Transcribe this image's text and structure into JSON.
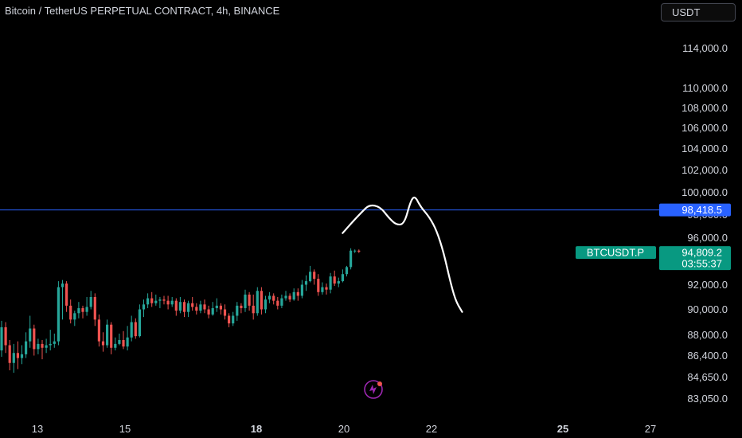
{
  "header": {
    "title": "Bitcoin / TetherUS PERPETUAL CONTRACT, 4h, BINANCE",
    "currency": "USDT"
  },
  "colors": {
    "background": "#000000",
    "axis_text": "#d1d4dc",
    "up": "#26a69a",
    "down": "#ef5350",
    "horizontal_line": "#2962ff",
    "line_label_bg": "#2962ff",
    "price_label_bg": "#089981",
    "drawing": "#ffffff",
    "logo": "#9c27b0"
  },
  "chart_data": {
    "type": "candlestick",
    "title": "Bitcoin / TetherUS PERPETUAL CONTRACT, 4h, BINANCE",
    "price_axis": {
      "ticks": [
        {
          "value": 114000,
          "label": "114,000.0"
        },
        {
          "value": 110000,
          "label": "110,000.0"
        },
        {
          "value": 108000,
          "label": "108,000.0"
        },
        {
          "value": 106000,
          "label": "106,000.0"
        },
        {
          "value": 104000,
          "label": "104,000.0"
        },
        {
          "value": 102000,
          "label": "102,000.0"
        },
        {
          "value": 100000,
          "label": "100,000.0"
        },
        {
          "value": 98000,
          "label": "98,000.0"
        },
        {
          "value": 96000,
          "label": "96,000.0"
        },
        {
          "value": 92000,
          "label": "92,000.0"
        },
        {
          "value": 90000,
          "label": "90,000.0"
        },
        {
          "value": 88000,
          "label": "88,000.0"
        },
        {
          "value": 86400,
          "label": "86,400.0"
        },
        {
          "value": 84650,
          "label": "84,650.0"
        },
        {
          "value": 83050,
          "label": "83,050.0"
        }
      ],
      "range": [
        82400,
        116500
      ]
    },
    "time_axis": {
      "ticks": [
        {
          "day": 13,
          "label": "13",
          "bold": false
        },
        {
          "day": 15,
          "label": "15",
          "bold": false
        },
        {
          "day": 18,
          "label": "18",
          "bold": true
        },
        {
          "day": 20,
          "label": "20",
          "bold": false
        },
        {
          "day": 22,
          "label": "22",
          "bold": false
        },
        {
          "day": 25,
          "label": "25",
          "bold": true
        },
        {
          "day": 27,
          "label": "27",
          "bold": false
        }
      ],
      "range_days": [
        12.25,
        27.45
      ]
    },
    "horizontal_line": {
      "value": 98418.5,
      "label": "98,418.5"
    },
    "last_price": {
      "symbol": "BTCUSDT.P",
      "value": "94,809.2",
      "countdown": "03:55:37",
      "numeric": 94809.2
    },
    "candles": [
      [
        86800,
        88600,
        89100,
        86300
      ],
      [
        88600,
        87200,
        89000,
        86600
      ],
      [
        87200,
        85800,
        87600,
        85200
      ],
      [
        85800,
        86600,
        87300,
        85000
      ],
      [
        86600,
        86200,
        87500,
        85300
      ],
      [
        86200,
        86500,
        87200,
        85700
      ],
      [
        86500,
        87500,
        88200,
        86200
      ],
      [
        87500,
        88500,
        89500,
        87000
      ],
      [
        88500,
        86900,
        88800,
        86400
      ],
      [
        86900,
        87300,
        87700,
        86500
      ],
      [
        87300,
        87000,
        87600,
        86100
      ],
      [
        87000,
        87200,
        87700,
        86600
      ],
      [
        87200,
        87300,
        88400,
        86800
      ],
      [
        87300,
        87500,
        88100,
        87000
      ],
      [
        87500,
        91800,
        92300,
        87200
      ],
      [
        91800,
        92100,
        92400,
        89200
      ],
      [
        92100,
        90300,
        92300,
        89800
      ],
      [
        90300,
        89200,
        90800,
        88900
      ],
      [
        89200,
        89700,
        89900,
        88700
      ],
      [
        89700,
        90100,
        90600,
        89300
      ],
      [
        90100,
        89800,
        90300,
        89300
      ],
      [
        89800,
        90200,
        91000,
        89500
      ],
      [
        90200,
        91000,
        91500,
        90000
      ],
      [
        91000,
        89200,
        91300,
        88700
      ],
      [
        89200,
        87500,
        89600,
        87100
      ],
      [
        87500,
        87200,
        88200,
        86700
      ],
      [
        87200,
        88800,
        89200,
        87000
      ],
      [
        88800,
        87000,
        89000,
        86500
      ],
      [
        87000,
        87300,
        87800,
        86800
      ],
      [
        87300,
        87600,
        88100,
        87200
      ],
      [
        87600,
        87100,
        88300,
        86900
      ],
      [
        87100,
        87800,
        88700,
        86800
      ],
      [
        87800,
        89000,
        89500,
        87500
      ],
      [
        89000,
        87900,
        89300,
        87700
      ],
      [
        87900,
        90000,
        90400,
        87800
      ],
      [
        90000,
        90400,
        90800,
        89400
      ],
      [
        90400,
        90900,
        91300,
        90100
      ],
      [
        90900,
        90500,
        91400,
        90200
      ],
      [
        90500,
        90700,
        91200,
        90300
      ],
      [
        90700,
        90800,
        91000,
        90100
      ],
      [
        90800,
        90700,
        91100,
        90400
      ],
      [
        90700,
        90400,
        91100,
        90000
      ],
      [
        90400,
        90700,
        91000,
        90200
      ],
      [
        90700,
        89900,
        90900,
        89500
      ],
      [
        89900,
        90600,
        91000,
        89700
      ],
      [
        90600,
        89800,
        90800,
        89400
      ],
      [
        89800,
        90500,
        90700,
        89400
      ],
      [
        90500,
        90200,
        91000,
        89900
      ],
      [
        90200,
        89900,
        90500,
        89600
      ],
      [
        89900,
        90400,
        90700,
        89700
      ],
      [
        90400,
        90000,
        90800,
        89700
      ],
      [
        90000,
        89600,
        90300,
        89300
      ],
      [
        89600,
        90100,
        90600,
        89500
      ],
      [
        90100,
        90300,
        90900,
        89800
      ],
      [
        90300,
        90000,
        90500,
        89600
      ],
      [
        90000,
        89500,
        90400,
        89200
      ],
      [
        89500,
        88900,
        89700,
        88600
      ],
      [
        88900,
        89500,
        89800,
        88700
      ],
      [
        89500,
        90300,
        90600,
        89100
      ],
      [
        90300,
        90100,
        90500,
        89700
      ],
      [
        90100,
        91200,
        91600,
        89800
      ],
      [
        91200,
        90300,
        91400,
        89900
      ],
      [
        90300,
        89700,
        91200,
        89200
      ],
      [
        89700,
        91500,
        91800,
        89500
      ],
      [
        91500,
        90000,
        91800,
        89600
      ],
      [
        90000,
        90800,
        91100,
        89700
      ],
      [
        90800,
        91100,
        91400,
        90500
      ],
      [
        91100,
        90700,
        91300,
        90400
      ],
      [
        90700,
        90300,
        91000,
        90000
      ],
      [
        90300,
        90900,
        91200,
        90100
      ],
      [
        90900,
        91100,
        91500,
        90700
      ],
      [
        91100,
        90800,
        91300,
        90600
      ],
      [
        90800,
        91400,
        91700,
        90700
      ],
      [
        91400,
        91100,
        91700,
        90700
      ],
      [
        91100,
        92000,
        92400,
        90900
      ],
      [
        92000,
        92300,
        92800,
        91500
      ],
      [
        92300,
        93100,
        93600,
        92200
      ],
      [
        93100,
        92500,
        93300,
        92000
      ],
      [
        92500,
        91400,
        92900,
        91100
      ],
      [
        91400,
        91800,
        92200,
        91200
      ],
      [
        91800,
        91600,
        92100,
        91200
      ],
      [
        91600,
        92700,
        93000,
        91300
      ],
      [
        92700,
        92100,
        93200,
        91900
      ],
      [
        92100,
        92300,
        92600,
        91800
      ],
      [
        92300,
        92900,
        93300,
        92200
      ],
      [
        92900,
        93500,
        93600,
        92700
      ],
      [
        93500,
        94900,
        95100,
        93300
      ],
      [
        94900,
        94900,
        95000,
        94700
      ],
      [
        94900,
        94809.2,
        95000,
        94700
      ]
    ]
  },
  "drawing": {
    "type": "freehand",
    "points": [
      [
        19.97,
        96400
      ],
      [
        20.18,
        97300
      ],
      [
        20.4,
        98200
      ],
      [
        20.58,
        98900
      ],
      [
        20.83,
        98700
      ],
      [
        21.03,
        97700
      ],
      [
        21.2,
        97100
      ],
      [
        21.38,
        97200
      ],
      [
        21.52,
        99200
      ],
      [
        21.62,
        99700
      ],
      [
        21.75,
        98700
      ],
      [
        21.95,
        97800
      ],
      [
        22.12,
        96600
      ],
      [
        22.28,
        94700
      ],
      [
        22.42,
        92400
      ],
      [
        22.55,
        90700
      ],
      [
        22.7,
        89800
      ]
    ]
  },
  "logo_icon": "lightning-logo-icon"
}
